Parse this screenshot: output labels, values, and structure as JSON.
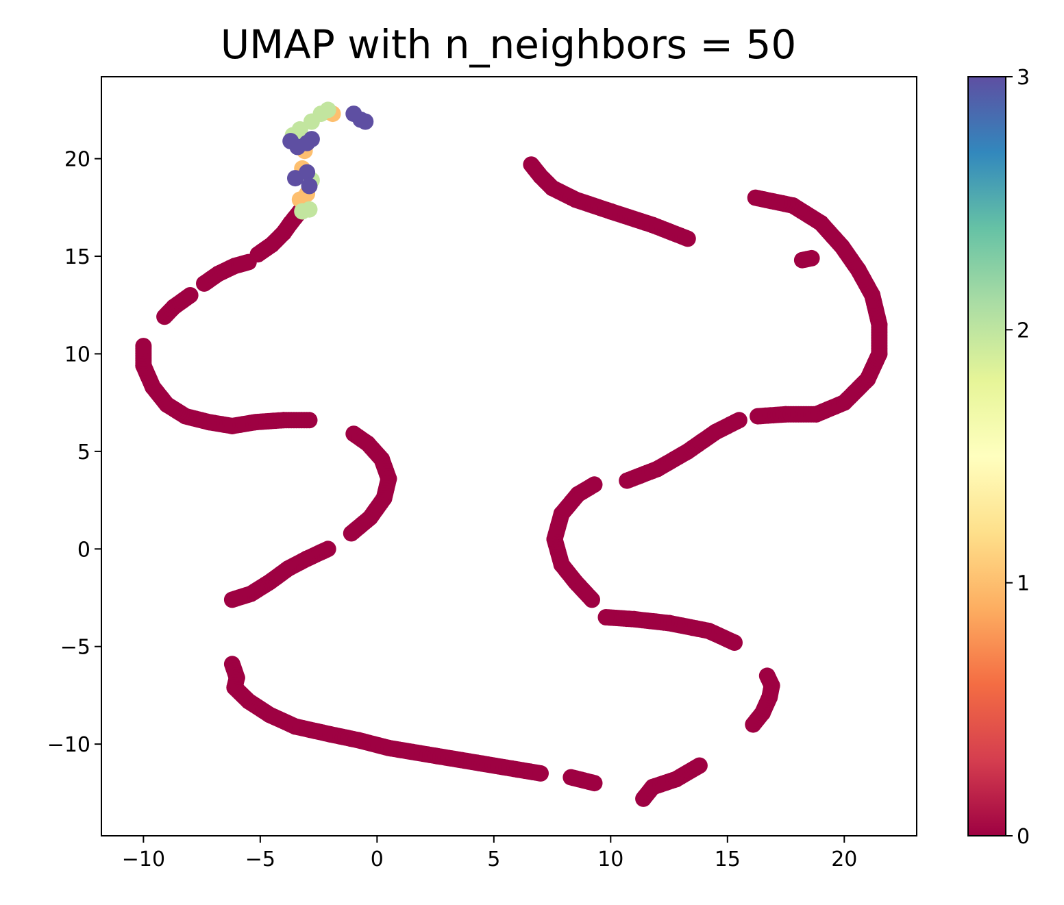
{
  "chart_data": {
    "type": "scatter",
    "title": "UMAP with n_neighbors = 50",
    "xlabel": "",
    "ylabel": "",
    "xlim": [
      -11.8,
      23.1
    ],
    "ylim": [
      -14.7,
      24.2
    ],
    "xticks": [
      -10,
      -5,
      0,
      5,
      10,
      15,
      20
    ],
    "xtick_labels": [
      "−10",
      "−5",
      "0",
      "5",
      "10",
      "15",
      "20"
    ],
    "yticks": [
      -10,
      -5,
      0,
      5,
      10,
      15,
      20
    ],
    "ytick_labels": [
      "−10",
      "−5",
      "0",
      "5",
      "10",
      "15",
      "20"
    ],
    "grid": false,
    "colorbar": {
      "colormap": "Spectral",
      "range": [
        0,
        3
      ],
      "ticks": [
        0,
        1,
        2,
        3
      ],
      "tick_labels": [
        "0",
        "1",
        "2",
        "3"
      ]
    },
    "colors": {
      "0": "#9e0142",
      "1": "#fdbf6f",
      "2": "#c2e59f",
      "3": "#5e4fa2"
    },
    "class_0_paths": [
      [
        [
          -2.9,
          6.6
        ],
        [
          -4.0,
          6.6
        ],
        [
          -5.2,
          6.5
        ],
        [
          -6.2,
          6.3
        ],
        [
          -7.2,
          6.5
        ],
        [
          -8.2,
          6.8
        ],
        [
          -9.0,
          7.4
        ],
        [
          -9.6,
          8.3
        ],
        [
          -10.0,
          9.4
        ],
        [
          -10.0,
          10.4
        ]
      ],
      [
        [
          -9.1,
          11.9
        ],
        [
          -8.7,
          12.4
        ],
        [
          -8.0,
          13.0
        ]
      ],
      [
        [
          -7.4,
          13.6
        ],
        [
          -6.8,
          14.1
        ],
        [
          -6.1,
          14.5
        ],
        [
          -5.5,
          14.7
        ]
      ],
      [
        [
          -5.1,
          15.1
        ],
        [
          -4.5,
          15.6
        ],
        [
          -4.0,
          16.2
        ],
        [
          -3.7,
          16.7
        ],
        [
          -3.3,
          17.3
        ]
      ],
      [
        [
          -1.0,
          5.9
        ],
        [
          -0.4,
          5.4
        ],
        [
          0.2,
          4.6
        ],
        [
          0.5,
          3.6
        ],
        [
          0.3,
          2.6
        ],
        [
          -0.3,
          1.6
        ],
        [
          -1.1,
          0.8
        ]
      ],
      [
        [
          -2.1,
          0.0
        ],
        [
          -3.0,
          -0.5
        ],
        [
          -3.8,
          -1.0
        ],
        [
          -4.6,
          -1.7
        ],
        [
          -5.4,
          -2.3
        ],
        [
          -6.2,
          -2.6
        ]
      ],
      [
        [
          -6.2,
          -5.9
        ],
        [
          -6.0,
          -6.6
        ],
        [
          -6.1,
          -7.1
        ],
        [
          -5.5,
          -7.8
        ],
        [
          -4.6,
          -8.5
        ],
        [
          -3.5,
          -9.1
        ],
        [
          -2.0,
          -9.5
        ],
        [
          -0.8,
          -9.8
        ],
        [
          0.5,
          -10.2
        ],
        [
          2.5,
          -10.6
        ],
        [
          4.5,
          -11.0
        ],
        [
          6.0,
          -11.3
        ],
        [
          7.0,
          -11.5
        ]
      ],
      [
        [
          8.3,
          -11.7
        ],
        [
          9.3,
          -12.0
        ]
      ],
      [
        [
          11.4,
          -12.8
        ],
        [
          11.8,
          -12.2
        ],
        [
          12.8,
          -11.8
        ],
        [
          13.8,
          -11.1
        ]
      ],
      [
        [
          16.1,
          -9.0
        ],
        [
          16.5,
          -8.4
        ],
        [
          16.8,
          -7.6
        ],
        [
          16.9,
          -7.0
        ],
        [
          16.7,
          -6.5
        ]
      ],
      [
        [
          15.3,
          -4.8
        ],
        [
          14.2,
          -4.2
        ],
        [
          12.5,
          -3.8
        ],
        [
          11.0,
          -3.6
        ],
        [
          9.8,
          -3.5
        ]
      ],
      [
        [
          9.2,
          -2.6
        ],
        [
          8.5,
          -1.7
        ],
        [
          7.9,
          -0.8
        ],
        [
          7.6,
          0.5
        ],
        [
          7.9,
          1.8
        ],
        [
          8.6,
          2.8
        ],
        [
          9.3,
          3.3
        ]
      ],
      [
        [
          10.7,
          3.5
        ],
        [
          12.0,
          4.1
        ],
        [
          13.3,
          5.0
        ],
        [
          14.5,
          6.0
        ],
        [
          15.5,
          6.6
        ]
      ],
      [
        [
          16.3,
          6.8
        ],
        [
          17.5,
          6.9
        ],
        [
          18.8,
          6.9
        ],
        [
          20.0,
          7.5
        ],
        [
          21.0,
          8.7
        ],
        [
          21.5,
          10.0
        ],
        [
          21.5,
          11.5
        ],
        [
          21.2,
          13.0
        ],
        [
          20.6,
          14.3
        ],
        [
          19.9,
          15.5
        ],
        [
          19.0,
          16.7
        ],
        [
          17.8,
          17.6
        ],
        [
          16.2,
          18.0
        ]
      ],
      [
        [
          18.2,
          14.8
        ],
        [
          18.6,
          14.9
        ]
      ],
      [
        [
          6.6,
          19.7
        ],
        [
          7.0,
          19.1
        ],
        [
          7.5,
          18.5
        ],
        [
          8.5,
          17.9
        ],
        [
          10.0,
          17.3
        ],
        [
          11.8,
          16.6
        ],
        [
          13.3,
          15.9
        ]
      ]
    ],
    "class_1_points": [
      [
        -3.3,
        17.9
      ],
      [
        -3.0,
        18.2
      ],
      [
        -3.2,
        19.5
      ],
      [
        -3.1,
        20.4
      ],
      [
        -3.0,
        20.9
      ],
      [
        -2.1,
        22.4
      ],
      [
        -1.9,
        22.3
      ]
    ],
    "class_2_points": [
      [
        -3.2,
        17.3
      ],
      [
        -2.9,
        17.4
      ],
      [
        -3.6,
        21.2
      ],
      [
        -3.3,
        21.5
      ],
      [
        -2.8,
        21.9
      ],
      [
        -2.4,
        22.3
      ],
      [
        -2.1,
        22.5
      ],
      [
        -2.8,
        18.9
      ]
    ],
    "class_3_points": [
      [
        -3.5,
        19.0
      ],
      [
        -3.0,
        19.3
      ],
      [
        -2.9,
        18.6
      ],
      [
        -3.7,
        20.9
      ],
      [
        -3.4,
        20.6
      ],
      [
        -3.0,
        20.8
      ],
      [
        -2.8,
        21.0
      ],
      [
        -1.0,
        22.3
      ],
      [
        -0.7,
        22.0
      ],
      [
        -0.5,
        21.9
      ]
    ]
  }
}
